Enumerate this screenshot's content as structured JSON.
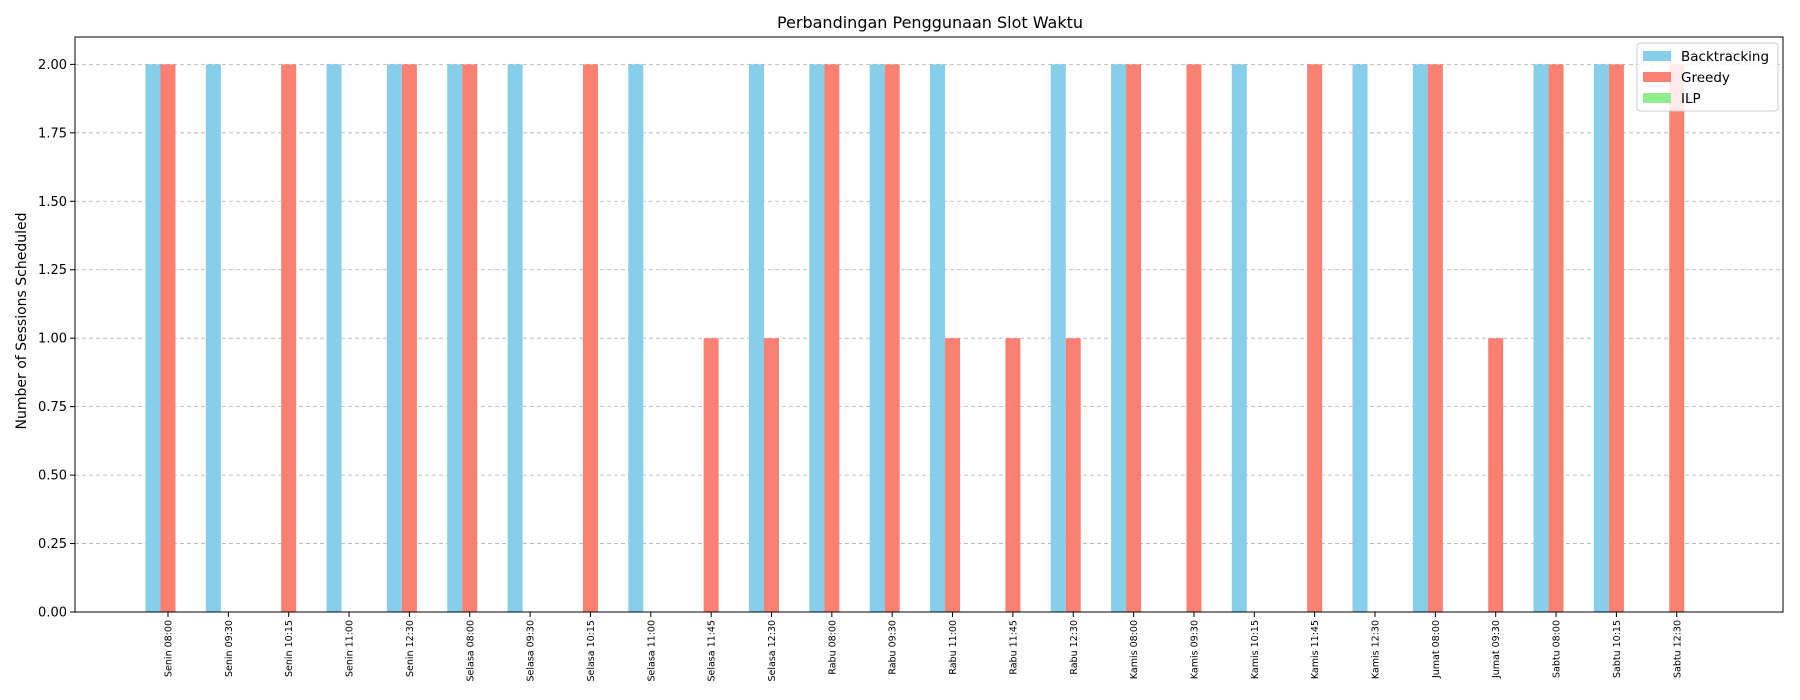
{
  "chart_data": {
    "type": "bar",
    "title": "Perbandingan Penggunaan Slot Waktu",
    "xlabel": "",
    "ylabel": "Number of Sessions Scheduled",
    "ylim": [
      0,
      2.1
    ],
    "yticks": [
      "0.00",
      "0.25",
      "0.50",
      "0.75",
      "1.00",
      "1.25",
      "1.50",
      "1.75",
      "2.00"
    ],
    "grid": "y-dashed",
    "legend_position": "top-right",
    "categories": [
      "Senin 08:00",
      "Senin 09:30",
      "Senin 10:15",
      "Senin 11:00",
      "Senin 12:30",
      "Selasa 08:00",
      "Selasa 09:30",
      "Selasa 10:15",
      "Selasa 11:00",
      "Selasa 11:45",
      "Selasa 12:30",
      "Rabu 08:00",
      "Rabu 09:30",
      "Rabu 11:00",
      "Rabu 11:45",
      "Rabu 12:30",
      "Kamis 08:00",
      "Kamis 09:30",
      "Kamis 10:15",
      "Kamis 11:45",
      "Kamis 12:30",
      "Jumat 08:00",
      "Jumat 09:30",
      "Sabtu 08:00",
      "Sabtu 10:15",
      "Sabtu 12:30"
    ],
    "series": [
      {
        "name": "Backtracking",
        "color": "#87CEEB",
        "values": [
          2,
          2,
          0,
          2,
          2,
          2,
          2,
          0,
          2,
          0,
          2,
          2,
          2,
          2,
          0,
          2,
          2,
          0,
          2,
          0,
          2,
          2,
          0,
          2,
          2,
          0
        ]
      },
      {
        "name": "Greedy",
        "color": "#FA8072",
        "values": [
          2,
          0,
          2,
          0,
          2,
          2,
          0,
          2,
          0,
          1,
          1,
          2,
          2,
          1,
          1,
          1,
          2,
          2,
          0,
          2,
          0,
          2,
          1,
          2,
          2,
          2
        ]
      },
      {
        "name": "ILP",
        "color": "#90EE90",
        "values": [
          0,
          0,
          0,
          0,
          0,
          0,
          0,
          0,
          0,
          0,
          0,
          0,
          0,
          0,
          0,
          0,
          0,
          0,
          0,
          0,
          0,
          0,
          0,
          0,
          0,
          0
        ]
      }
    ]
  }
}
